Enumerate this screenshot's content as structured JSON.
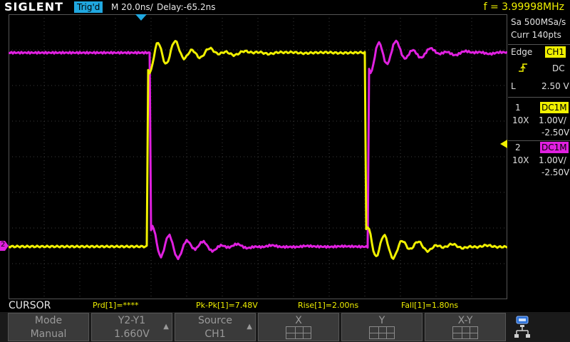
{
  "header": {
    "brand": "SIGLENT",
    "trigger_status": "Trig'd",
    "timebase": "M 20.0ns/",
    "delay": "Delay:-65.2ns",
    "frequency": "f = 3.99998MHz"
  },
  "acquisition": {
    "sample_rate": "Sa 500MSa/s",
    "memory": "Curr 140pts"
  },
  "trigger": {
    "mode": "Edge",
    "source": "CH1",
    "coupling": "DC",
    "level_label": "L",
    "level": "2.50 V",
    "slope_icon": "rising-edge-icon"
  },
  "channels": [
    {
      "number": "1",
      "coupling": "DC1M",
      "probe": "10X",
      "scale": "1.00V/",
      "offset": "-2.50V",
      "color": "#f0f000"
    },
    {
      "number": "2",
      "coupling": "DC1M",
      "probe": "10X",
      "scale": "1.00V/",
      "offset": "-2.50V",
      "color": "#e020e0"
    }
  ],
  "measurements": {
    "title": "CURSOR",
    "period": "Prd[1]=****",
    "pkpk": "Pk-Pk[1]=7.48V",
    "rise": "Rise[1]=2.00ns",
    "fall": "Fall[1]=1.80ns"
  },
  "menu": [
    {
      "line1": "Mode",
      "line2": "Manual",
      "arrow": ""
    },
    {
      "line1": "Y2-Y1",
      "line2": "1.660V",
      "arrow": "▲"
    },
    {
      "line1": "Source",
      "line2": "CH1",
      "arrow": "▲"
    },
    {
      "line1": "X",
      "line2": "",
      "icon": "grid-icon"
    },
    {
      "line1": "Y",
      "line2": "",
      "icon": "grid-icon"
    },
    {
      "line1": "X-Y",
      "line2": "",
      "icon": "grid-icon"
    }
  ],
  "markers": {
    "ch2_ground": "2",
    "trigger_position_icon": "trigger-position-marker-icon",
    "trigger_level_icon": "trigger-level-marker-icon"
  },
  "colors": {
    "ch1": "#f0f000",
    "ch2": "#e020e0",
    "trig_badge": "#20a8e0",
    "grid": "#3c3c3c"
  }
}
